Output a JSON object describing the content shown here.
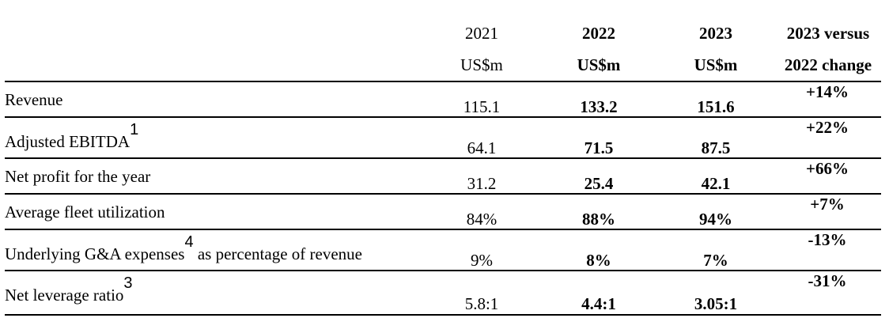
{
  "header": {
    "col2021": {
      "year": "2021",
      "unit": "US$m"
    },
    "col2022": {
      "year": "2022",
      "unit": "US$m"
    },
    "col2023": {
      "year": "2023",
      "unit": "US$m"
    },
    "colchange": {
      "line1": "2023 versus",
      "line2": "2022 change"
    }
  },
  "rows": [
    {
      "label": "Revenue",
      "sup": "",
      "v2021": "115.1",
      "v2022": "133.2",
      "v2023": "151.6",
      "change": "+14%"
    },
    {
      "label": "Adjusted EBITDA",
      "sup": "1",
      "v2021": "64.1",
      "v2022": "71.5",
      "v2023": "87.5",
      "change": "+22%"
    },
    {
      "label": "Net profit for the year",
      "sup": "",
      "v2021": "31.2",
      "v2022": "25.4",
      "v2023": "42.1",
      "change": "+66%"
    },
    {
      "label": "Average fleet utilization",
      "sup": "",
      "v2021": "84%",
      "v2022": "88%",
      "v2023": "94%",
      "change": "+7%"
    },
    {
      "label": "Underlying G&A expenses",
      "sup": "4",
      "label_suffix": " as percentage of revenue",
      "v2021": "9%",
      "v2022": "8%",
      "v2023": "7%",
      "change": "-13%"
    },
    {
      "label": "Net leverage ratio",
      "sup": "3",
      "v2021": "5.8:1",
      "v2022": "4.4:1",
      "v2023": "3.05:1",
      "change": "-31%"
    }
  ]
}
